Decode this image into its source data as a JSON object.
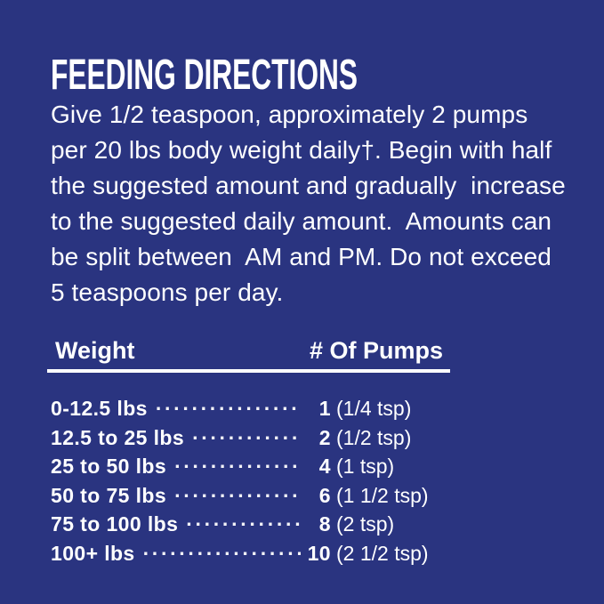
{
  "panel": {
    "background_color": "#2A3480",
    "text_color": "#FFFFFF",
    "rule_color": "#FFFFFF"
  },
  "title": "FEEDING DIRECTIONS",
  "directions": {
    "lines": [
      "Give 1/2 teaspoon, approximately 2 pumps",
      "per 20 lbs body weight daily†. Begin with half",
      "the suggested amount and gradually  increase",
      "to the suggested daily amount.  Amounts can",
      "be split between  AM and PM. Do not exceed",
      "5 teaspoons per day."
    ]
  },
  "table": {
    "headers": {
      "weight": "Weight",
      "pumps": "# Of Pumps"
    },
    "leader_dots": "········································",
    "rows": [
      {
        "weight": "0-12.5 lbs",
        "pumps": "1",
        "tsp": "(1/4 tsp)"
      },
      {
        "weight": "12.5 to 25 lbs",
        "pumps": "2",
        "tsp": "(1/2 tsp)"
      },
      {
        "weight": "25 to 50 lbs",
        "pumps": "4",
        "tsp": "(1 tsp)"
      },
      {
        "weight": "50 to 75 lbs",
        "pumps": "6",
        "tsp": "(1 1/2 tsp)"
      },
      {
        "weight": "75 to 100 lbs",
        "pumps": "8",
        "tsp": "(2 tsp)"
      },
      {
        "weight": "100+ lbs",
        "pumps": "10",
        "tsp": "(2 1/2 tsp)"
      }
    ]
  }
}
